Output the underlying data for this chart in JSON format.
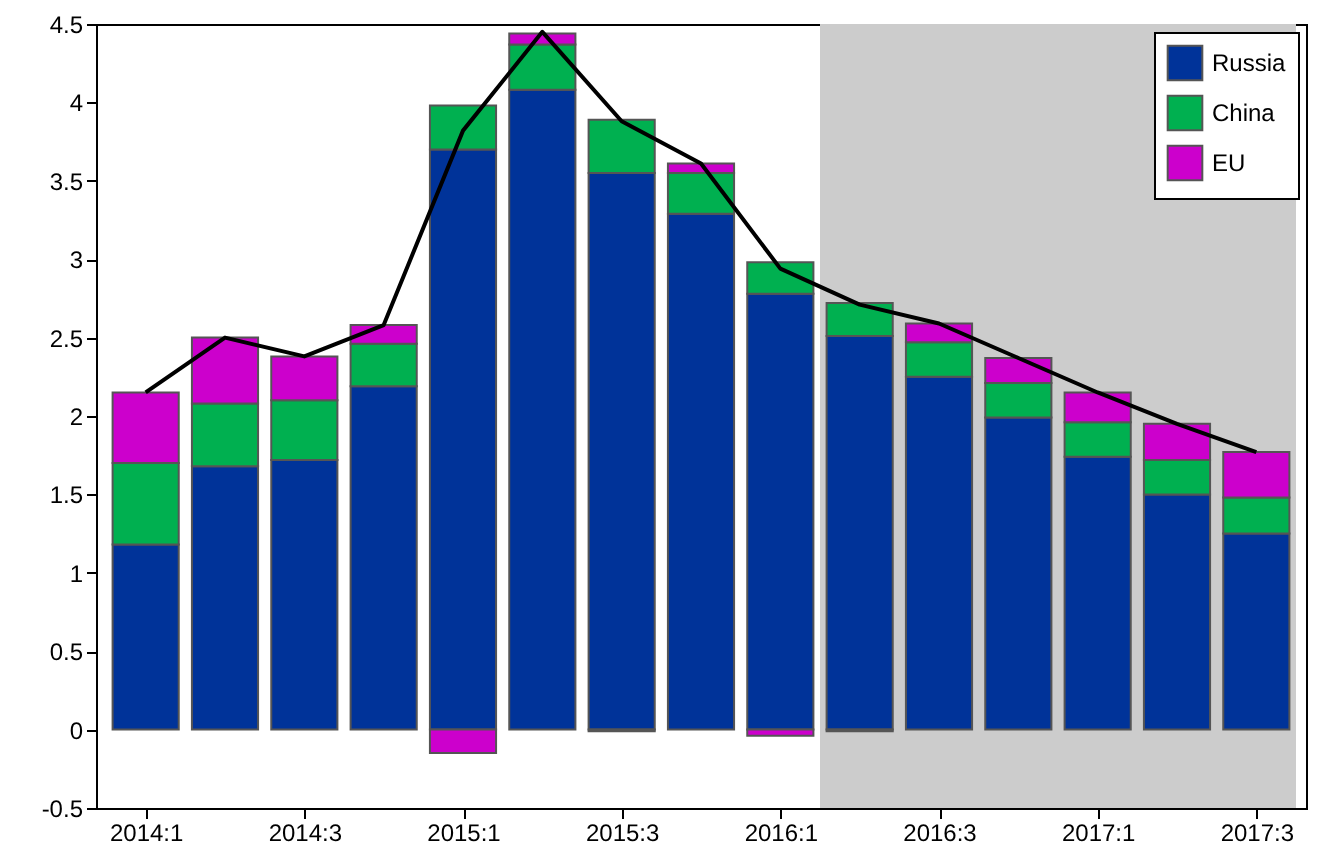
{
  "chart_data": {
    "type": "bar",
    "stacked": true,
    "categories": [
      "2014:1",
      null,
      "2014:3",
      null,
      "2015:1",
      null,
      "2015:3",
      null,
      "2016:1",
      null,
      "2016:3",
      null,
      "2017:1",
      null,
      "2017:3"
    ],
    "ylim": [
      -0.5,
      4.5
    ],
    "yticks": [
      -0.5,
      0,
      0.5,
      1,
      1.5,
      2,
      2.5,
      3,
      3.5,
      4,
      4.5
    ],
    "legend": "top right",
    "series": [
      {
        "name": "Russia",
        "color": "#003399",
        "values": [
          1.18,
          1.68,
          1.72,
          2.19,
          3.7,
          4.08,
          3.55,
          3.29,
          2.78,
          2.51,
          2.25,
          1.99,
          1.74,
          1.5,
          1.25
        ]
      },
      {
        "name": "China",
        "color": "#00b050",
        "values": [
          0.52,
          0.4,
          0.38,
          0.27,
          0.28,
          0.29,
          0.34,
          0.26,
          0.2,
          0.21,
          0.22,
          0.22,
          0.22,
          0.22,
          0.23
        ]
      },
      {
        "name": "EU",
        "color": "#cc00cc",
        "values": [
          0.45,
          0.42,
          0.28,
          0.12,
          -0.15,
          0.07,
          -0.01,
          0.06,
          -0.04,
          -0.01,
          0.12,
          0.16,
          0.19,
          0.23,
          0.29
        ]
      },
      {
        "type": "line",
        "color": "#000000",
        "values": [
          2.15,
          2.5,
          2.38,
          2.58,
          3.82,
          4.45,
          3.88,
          3.61,
          2.94,
          2.71,
          2.59,
          2.37,
          2.15,
          1.95,
          1.77
        ]
      }
    ],
    "bands": [
      {
        "axis": "x",
        "from": "2016:1",
        "to": "2017:3",
        "color": "#cccccc"
      }
    ]
  }
}
